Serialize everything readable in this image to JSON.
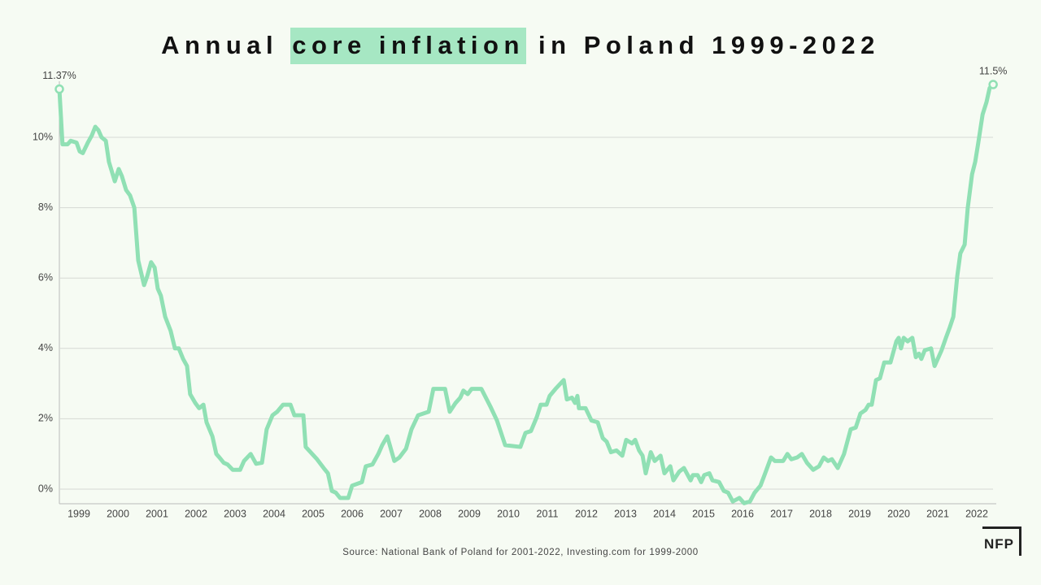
{
  "chart_data": {
    "type": "line",
    "title": {
      "before": "Annual",
      "highlight": "core inflation",
      "after": "in Poland 1999-2022"
    },
    "source": "Source: National Bank of Poland for 2001-2022, Investing.com for 1999-2000",
    "logo": "NFP",
    "xlim": [
      1999,
      2023
    ],
    "xticks": [
      {
        "value": 1999.5,
        "label": "1999"
      },
      {
        "value": 2000.5,
        "label": "2000"
      },
      {
        "value": 2001.5,
        "label": "2001"
      },
      {
        "value": 2002.5,
        "label": "2002"
      },
      {
        "value": 2003.5,
        "label": "2003"
      },
      {
        "value": 2004.5,
        "label": "2004"
      },
      {
        "value": 2005.5,
        "label": "2005"
      },
      {
        "value": 2006.5,
        "label": "2006"
      },
      {
        "value": 2007.5,
        "label": "2007"
      },
      {
        "value": 2008.5,
        "label": "2008"
      },
      {
        "value": 2009.5,
        "label": "2009"
      },
      {
        "value": 2010.5,
        "label": "2010"
      },
      {
        "value": 2011.5,
        "label": "2011"
      },
      {
        "value": 2012.5,
        "label": "2012"
      },
      {
        "value": 2013.5,
        "label": "2013"
      },
      {
        "value": 2014.5,
        "label": "2014"
      },
      {
        "value": 2015.5,
        "label": "2015"
      },
      {
        "value": 2016.5,
        "label": "2016"
      },
      {
        "value": 2017.5,
        "label": "2017"
      },
      {
        "value": 2018.5,
        "label": "2018"
      },
      {
        "value": 2019.5,
        "label": "2019"
      },
      {
        "value": 2020.5,
        "label": "2020"
      },
      {
        "value": 2021.5,
        "label": "2021"
      },
      {
        "value": 2022.5,
        "label": "2022"
      }
    ],
    "ylim": [
      -0.42,
      11.6
    ],
    "yticks": [
      {
        "value": 0,
        "label": "0%"
      },
      {
        "value": 2,
        "label": "2%"
      },
      {
        "value": 4,
        "label": "4%"
      },
      {
        "value": 6,
        "label": "6%"
      },
      {
        "value": 8,
        "label": "8%"
      },
      {
        "value": 10,
        "label": "10%"
      }
    ],
    "grid": true,
    "color": "#90e0b4",
    "x": [
      1999.0,
      1999.08,
      1999.21,
      1999.29,
      1999.44,
      1999.52,
      1999.6,
      1999.73,
      1999.83,
      1999.92,
      2000.0,
      2000.08,
      2000.19,
      2000.27,
      2000.42,
      2000.52,
      2000.6,
      2000.71,
      2000.81,
      2000.92,
      2001.02,
      2001.17,
      2001.25,
      2001.35,
      2001.44,
      2001.52,
      2001.6,
      2001.71,
      2001.85,
      2001.96,
      2002.06,
      2002.17,
      2002.27,
      2002.35,
      2002.48,
      2002.58,
      2002.69,
      2002.77,
      2002.92,
      2003.02,
      2003.1,
      2003.21,
      2003.31,
      2003.44,
      2003.63,
      2003.73,
      2003.9,
      2004.04,
      2004.19,
      2004.31,
      2004.46,
      2004.58,
      2004.73,
      2004.92,
      2005.02,
      2005.25,
      2005.31,
      2005.6,
      2005.77,
      2005.88,
      2005.98,
      2006.08,
      2006.19,
      2006.4,
      2006.5,
      2006.75,
      2006.85,
      2007.02,
      2007.17,
      2007.27,
      2007.4,
      2007.58,
      2007.71,
      2007.88,
      2008.02,
      2008.19,
      2008.33,
      2008.46,
      2008.58,
      2008.88,
      2009.0,
      2009.15,
      2009.27,
      2009.35,
      2009.46,
      2009.56,
      2009.81,
      2010.04,
      2010.21,
      2010.42,
      2010.81,
      2010.94,
      2011.08,
      2011.23,
      2011.33,
      2011.48,
      2011.56,
      2011.71,
      2011.92,
      2012.0,
      2012.13,
      2012.21,
      2012.27,
      2012.31,
      2012.48,
      2012.63,
      2012.79,
      2012.92,
      2013.02,
      2013.13,
      2013.27,
      2013.42,
      2013.52,
      2013.67,
      2013.75,
      2013.85,
      2013.94,
      2014.02,
      2014.15,
      2014.25,
      2014.4,
      2014.5,
      2014.65,
      2014.73,
      2014.88,
      2015.0,
      2015.17,
      2015.23,
      2015.35,
      2015.44,
      2015.52,
      2015.65,
      2015.73,
      2015.9,
      2016.02,
      2016.13,
      2016.25,
      2016.42,
      2016.54,
      2016.69,
      2016.81,
      2016.96,
      2017.08,
      2017.23,
      2017.33,
      2017.54,
      2017.65,
      2017.75,
      2017.9,
      2018.02,
      2018.15,
      2018.31,
      2018.46,
      2018.58,
      2018.69,
      2018.79,
      2018.94,
      2019.1,
      2019.27,
      2019.4,
      2019.52,
      2019.65,
      2019.73,
      2019.81,
      2019.92,
      2020.02,
      2020.13,
      2020.29,
      2020.44,
      2020.5,
      2020.56,
      2020.63,
      2020.73,
      2020.85,
      2020.94,
      2021.02,
      2021.08,
      2021.17,
      2021.33,
      2021.42,
      2021.6,
      2021.71,
      2021.81,
      2021.9,
      2022.0,
      2022.08,
      2022.19,
      2022.27,
      2022.38,
      2022.46,
      2022.54,
      2022.65,
      2022.75,
      2022.83,
      2022.92
    ],
    "values": [
      11.37,
      9.8,
      9.8,
      9.9,
      9.85,
      9.6,
      9.55,
      9.85,
      10.05,
      10.3,
      10.2,
      10.0,
      9.9,
      9.3,
      8.75,
      9.1,
      8.9,
      8.5,
      8.35,
      8.0,
      6.5,
      5.8,
      6.05,
      6.45,
      6.3,
      5.7,
      5.5,
      4.9,
      4.5,
      4.0,
      4.0,
      3.7,
      3.5,
      2.7,
      2.45,
      2.3,
      2.4,
      1.9,
      1.5,
      1.0,
      0.9,
      0.75,
      0.7,
      0.55,
      0.55,
      0.8,
      1.0,
      0.72,
      0.75,
      1.7,
      2.1,
      2.2,
      2.4,
      2.4,
      2.1,
      2.1,
      1.2,
      0.85,
      0.6,
      0.45,
      -0.05,
      -0.1,
      -0.25,
      -0.25,
      0.1,
      0.2,
      0.65,
      0.7,
      1.0,
      1.25,
      1.5,
      0.8,
      0.9,
      1.15,
      1.7,
      2.1,
      2.15,
      2.2,
      2.85,
      2.85,
      2.2,
      2.45,
      2.6,
      2.8,
      2.7,
      2.85,
      2.85,
      2.35,
      1.95,
      1.25,
      1.2,
      1.6,
      1.65,
      2.05,
      2.4,
      2.4,
      2.65,
      2.85,
      3.1,
      2.55,
      2.6,
      2.45,
      2.65,
      2.3,
      2.3,
      1.95,
      1.9,
      1.45,
      1.35,
      1.05,
      1.1,
      0.95,
      1.4,
      1.3,
      1.4,
      1.1,
      0.95,
      0.45,
      1.05,
      0.8,
      0.95,
      0.45,
      0.65,
      0.25,
      0.5,
      0.6,
      0.25,
      0.4,
      0.4,
      0.2,
      0.4,
      0.45,
      0.25,
      0.2,
      -0.05,
      -0.1,
      -0.35,
      -0.25,
      -0.4,
      -0.35,
      -0.1,
      0.1,
      0.45,
      0.9,
      0.8,
      0.8,
      1.0,
      0.85,
      0.9,
      1.0,
      0.75,
      0.55,
      0.65,
      0.9,
      0.8,
      0.85,
      0.6,
      1.0,
      1.7,
      1.75,
      2.15,
      2.25,
      2.4,
      2.4,
      3.1,
      3.15,
      3.6,
      3.6,
      4.2,
      4.3,
      4.0,
      4.3,
      4.2,
      4.3,
      3.75,
      3.85,
      3.7,
      3.95,
      4.0,
      3.5,
      3.95,
      4.3,
      4.6,
      4.9,
      6.05,
      6.7,
      6.95,
      8.0,
      8.95,
      9.3,
      9.85,
      10.65,
      11.0,
      11.4,
      11.5
    ],
    "value_labels": [
      "11.37%",
      null,
      null,
      null,
      null,
      null,
      null,
      null,
      null,
      null,
      null,
      null,
      null,
      null,
      null,
      null,
      null,
      null,
      null,
      null,
      null,
      null,
      null,
      null,
      null,
      null,
      null,
      null,
      null,
      null,
      null,
      null,
      null,
      null,
      null,
      null,
      null,
      null,
      null,
      null,
      null,
      null,
      null,
      null,
      null,
      null,
      null,
      null,
      null,
      null,
      null,
      null,
      null,
      null,
      null,
      null,
      null,
      null,
      null,
      null,
      null,
      null,
      null,
      null,
      null,
      null,
      null,
      null,
      null,
      null,
      null,
      null,
      null,
      null,
      null,
      null,
      null,
      null,
      null,
      null,
      null,
      null,
      null,
      null,
      null,
      null,
      null,
      null,
      null,
      null,
      null,
      null,
      null,
      null,
      null,
      null,
      null,
      null,
      null,
      null,
      null,
      null,
      null,
      null,
      null,
      null,
      null,
      null,
      null,
      null,
      null,
      null,
      null,
      null,
      null,
      null,
      null,
      null,
      null,
      null,
      null,
      null,
      null,
      null,
      null,
      null,
      null,
      null,
      null,
      null,
      null,
      null,
      null,
      null,
      null,
      null,
      null,
      null,
      null,
      null,
      null,
      null,
      null,
      null,
      null,
      null,
      null,
      null,
      null,
      null,
      null,
      null,
      null,
      null,
      null,
      null,
      null,
      null,
      null,
      null,
      null,
      null,
      null,
      null,
      null,
      null,
      null,
      null,
      null,
      null,
      null,
      null,
      null,
      null,
      null,
      null,
      null,
      null,
      null,
      null,
      null,
      null,
      null,
      null,
      null,
      null,
      null,
      null,
      null,
      null,
      null,
      null,
      null,
      null,
      "11.5%"
    ]
  }
}
